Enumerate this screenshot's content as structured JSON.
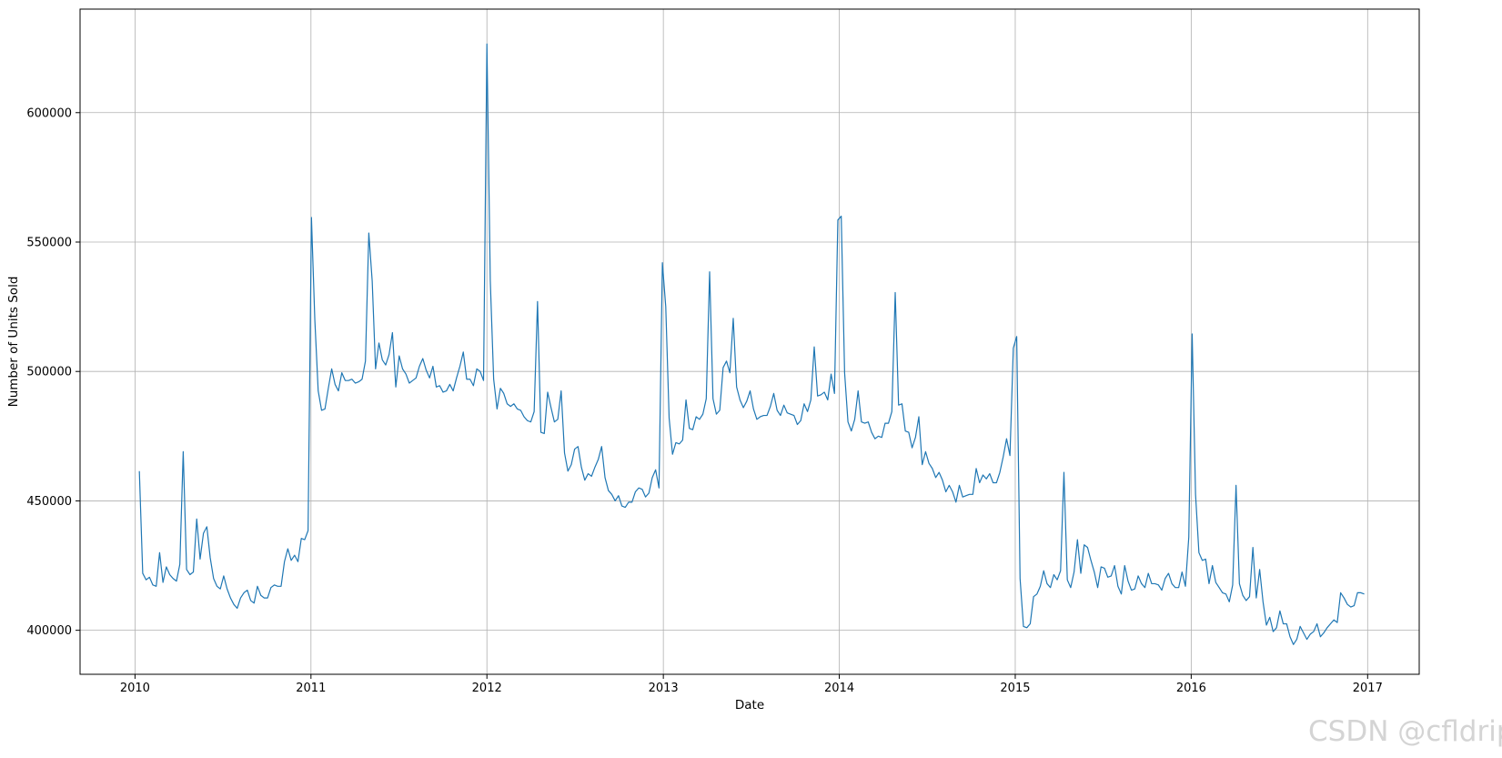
{
  "chart_data": {
    "type": "line",
    "title": "",
    "xlabel": "Date",
    "ylabel": "Number of Units Sold",
    "xlim": [
      "2009-09-09",
      "2017-04-18"
    ],
    "ylim": [
      383000,
      640000
    ],
    "grid": true,
    "x_ticks": [
      "2010-01-01",
      "2011-01-01",
      "2012-01-01",
      "2013-01-01",
      "2014-01-01",
      "2015-01-01",
      "2016-01-01",
      "2017-01-01"
    ],
    "x_tick_labels": [
      "2010",
      "2011",
      "2012",
      "2013",
      "2014",
      "2015",
      "2016",
      "2017"
    ],
    "y_ticks": [
      400000,
      450000,
      500000,
      550000,
      600000
    ],
    "y_tick_labels": [
      "400000",
      "450000",
      "500000",
      "550000",
      "600000"
    ],
    "series": [
      {
        "name": "",
        "color": "#1f77b4",
        "start": "2010-01-10",
        "interval_days": 7,
        "values": [
          461500,
          422000,
          419500,
          420500,
          417500,
          417000,
          430000,
          418500,
          424500,
          421500,
          420000,
          419000,
          425500,
          469000,
          423500,
          421500,
          422500,
          443000,
          427500,
          437500,
          440000,
          428000,
          420000,
          417000,
          416000,
          421000,
          416000,
          412500,
          410000,
          408500,
          412500,
          414500,
          415500,
          411500,
          410500,
          417000,
          413500,
          412500,
          412500,
          416500,
          417500,
          417000,
          417000,
          426500,
          431500,
          427000,
          429000,
          426500,
          435500,
          435000,
          438500,
          559500,
          520000,
          492500,
          485000,
          485500,
          493500,
          501000,
          495000,
          492500,
          499500,
          496500,
          496500,
          497000,
          495500,
          496000,
          497000,
          504000,
          553500,
          535000,
          501000,
          511000,
          504500,
          502500,
          506500,
          515000,
          494000,
          506000,
          501000,
          499000,
          495500,
          496500,
          497500,
          502000,
          505000,
          500500,
          497500,
          502000,
          494000,
          494500,
          492000,
          492500,
          495000,
          492500,
          497500,
          502000,
          507500,
          497000,
          497000,
          494500,
          501000,
          500000,
          496500,
          626500,
          535000,
          497000,
          485500,
          493500,
          491500,
          487500,
          486500,
          487500,
          485500,
          485000,
          482500,
          481000,
          480500,
          484500,
          527000,
          476500,
          476000,
          492000,
          486000,
          480500,
          481500,
          492500,
          468500,
          461500,
          464000,
          470000,
          471000,
          463000,
          458000,
          460500,
          459500,
          463000,
          466000,
          471000,
          459000,
          454000,
          452500,
          450000,
          452000,
          448000,
          447500,
          449500,
          449500,
          453500,
          455000,
          454500,
          451500,
          453000,
          459000,
          462000,
          455000,
          542000,
          525000,
          482000,
          468000,
          472500,
          472000,
          473500,
          489000,
          478000,
          477500,
          482500,
          481500,
          483500,
          489500,
          538500,
          489500,
          483500,
          485000,
          501500,
          504000,
          499500,
          520500,
          494000,
          489000,
          486000,
          488500,
          492500,
          485500,
          481500,
          482500,
          483000,
          483000,
          486500,
          491500,
          485000,
          483000,
          487000,
          484000,
          483500,
          483000,
          479500,
          481000,
          487500,
          484500,
          489000,
          509500,
          490500,
          491000,
          492000,
          489000,
          499000,
          491500,
          558500,
          560000,
          499500,
          480500,
          477000,
          481500,
          492500,
          480500,
          480000,
          480500,
          476500,
          474000,
          475000,
          474500,
          480000,
          480000,
          484500,
          530500,
          487000,
          487500,
          477000,
          476500,
          470500,
          474500,
          482500,
          464000,
          469000,
          464500,
          462500,
          459000,
          461000,
          458000,
          453500,
          456000,
          453500,
          449500,
          456000,
          451500,
          452000,
          452500,
          452500,
          462500,
          457000,
          460000,
          458500,
          460500,
          457000,
          457000,
          461000,
          467000,
          474000,
          467500,
          509000,
          513500,
          420000,
          401500,
          401000,
          402500,
          413000,
          414000,
          417000,
          423000,
          418000,
          416500,
          421500,
          419500,
          423000,
          461000,
          419500,
          416500,
          422500,
          435000,
          422000,
          433000,
          432000,
          427000,
          422500,
          416500,
          424500,
          424000,
          420500,
          421000,
          425000,
          417000,
          414000,
          425000,
          419000,
          415500,
          416000,
          421000,
          418000,
          416500,
          422000,
          418000,
          418000,
          417500,
          415500,
          420000,
          422000,
          418000,
          416500,
          416500,
          422500,
          417000,
          436000,
          514500,
          452500,
          430000,
          427000,
          427500,
          418000,
          425000,
          418500,
          416500,
          414500,
          414000,
          411000,
          417500,
          456000,
          418000,
          413500,
          411500,
          413000,
          432000,
          412500,
          423500,
          411000,
          402000,
          405000,
          399500,
          401000,
          407500,
          402500,
          402500,
          397500,
          394500,
          396500,
          401500,
          399000,
          396500,
          398500,
          399500,
          402500,
          397500,
          399000,
          401000,
          402500,
          404000,
          403000,
          414500,
          412500,
          410000,
          409000,
          409500,
          414500,
          414500,
          414000
        ]
      }
    ]
  },
  "watermark": "CSDN @cfldrip"
}
